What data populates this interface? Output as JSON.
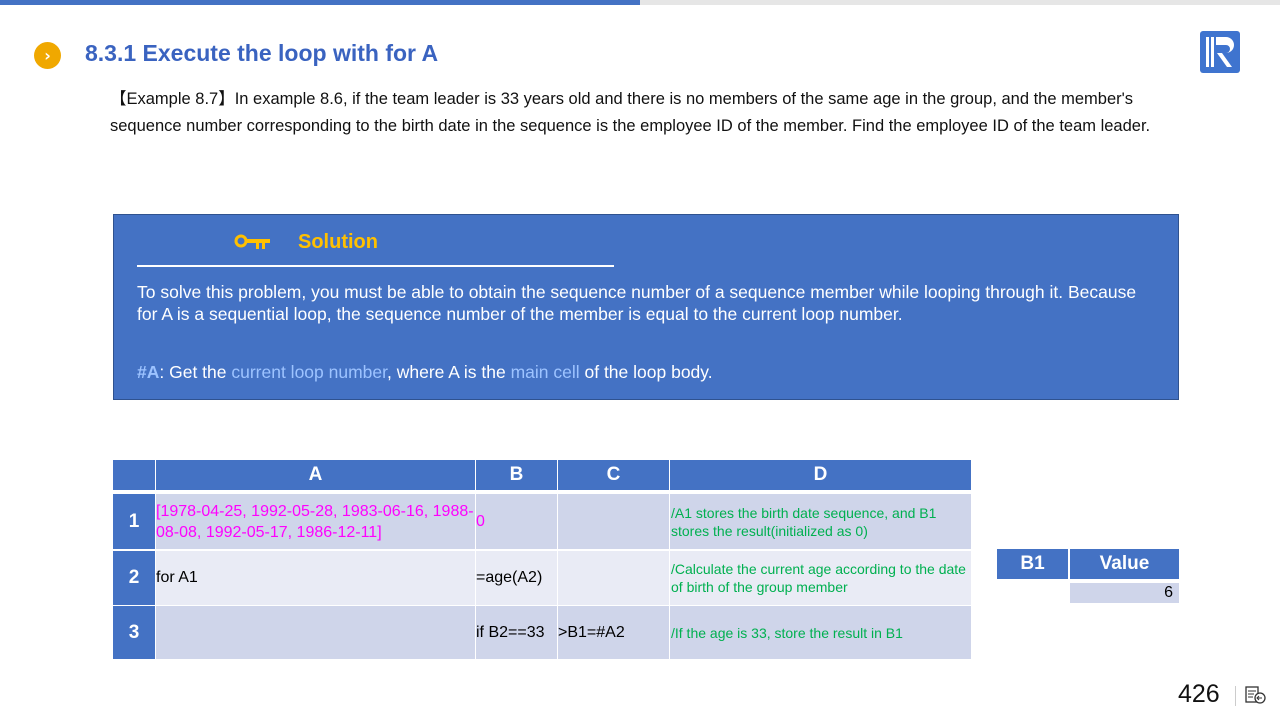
{
  "progress": {
    "fraction": 0.5,
    "color": "#4472c4"
  },
  "header": {
    "bullet_icon": "chevron-right-circle-icon",
    "title": "8.3.1 Execute the loop with for A",
    "logo": "R"
  },
  "example": {
    "text": "【Example 8.7】In example 8.6, if the team leader is 33 years old and there is no members of the same age in the group, and the member's sequence number corresponding to the birth date in the sequence is the employee ID of the member. Find the employee ID of the team leader."
  },
  "solution": {
    "icon": "key-icon",
    "heading": "Solution",
    "text": "To solve this problem, you must be able to obtain the sequence number of a sequence member while looping through it. Because for A is a sequential loop, the sequence number of the member is equal to the current loop number.",
    "note": {
      "code": "#A",
      "p1": ": Get the ",
      "h1": "current loop number",
      "p2": ", where A is the ",
      "h2": "main cell",
      "p3": " of the loop body."
    }
  },
  "grid": {
    "columns": [
      "A",
      "B",
      "C",
      "D"
    ],
    "rows": [
      {
        "num": "1",
        "A": "[1978-04-25, 1992-05-28, 1983-06-16, 1988-08-08, 1992-05-17, 1986-12-11]",
        "B": "0",
        "C": "",
        "D": "/A1 stores the birth date sequence, and B1 stores the result(initialized as 0)"
      },
      {
        "num": "2",
        "A": "for A1",
        "B": "=age(A2)",
        "C": "",
        "D": "/Calculate the current age according to the date of birth of the group member"
      },
      {
        "num": "3",
        "A": "",
        "B": "if B2==33",
        "C": ">B1=#A2",
        "D": "/If the age is 33, store the result in B1"
      }
    ]
  },
  "result": {
    "headers": [
      "B1",
      "Value"
    ],
    "value": "6"
  },
  "footer": {
    "page": "426",
    "nav_icon": "slide-menu-icon"
  }
}
